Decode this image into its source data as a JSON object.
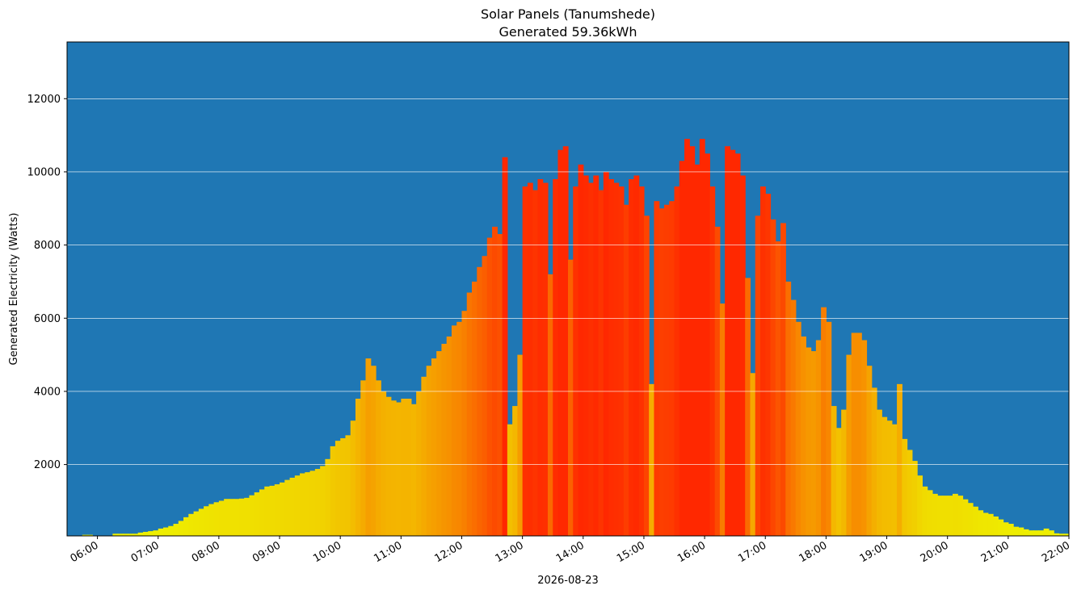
{
  "chart_data": {
    "type": "bar",
    "title": "Solar Panels (Tanumshede)",
    "subtitle": "Generated 59.36kWh",
    "xlabel": "2026-08-23",
    "ylabel": "Generated Electricity (Watts)",
    "x_range_hours": [
      5.5,
      22.0
    ],
    "ylim": [
      50,
      13550
    ],
    "y_ticks": [
      2000,
      4000,
      6000,
      8000,
      10000,
      12000
    ],
    "x_ticks": [
      "06:00",
      "07:00",
      "08:00",
      "09:00",
      "10:00",
      "11:00",
      "12:00",
      "13:00",
      "14:00",
      "15:00",
      "16:00",
      "17:00",
      "18:00",
      "19:00",
      "20:00",
      "21:00",
      "22:00"
    ],
    "grid": "horizontal",
    "colors": {
      "background": "#1f77b4",
      "grid": "#ffffff",
      "low": "#eef200",
      "mid": "#f5a800",
      "high": "#ff2800"
    },
    "interval_minutes": 5,
    "series": [
      {
        "start_hour": 5.75,
        "values": [
          80,
          80,
          0,
          0,
          0,
          0,
          110,
          110,
          110,
          110,
          110,
          140,
          160,
          180,
          200,
          250,
          280,
          320,
          380,
          460,
          560,
          650,
          720,
          790,
          860,
          920,
          970,
          1010,
          1060,
          1060,
          1060,
          1070,
          1090,
          1160,
          1240,
          1320,
          1400,
          1420,
          1460,
          1510,
          1580,
          1640,
          1700,
          1760,
          1790,
          1830,
          1880,
          1960,
          2150,
          2500,
          2650,
          2720,
          2800,
          3200,
          3800,
          4300,
          4900,
          4700,
          4300,
          4000,
          3850,
          3750,
          3700,
          3800,
          3800,
          3650,
          4000,
          4400,
          4700,
          4900,
          5100,
          5300,
          5500,
          5800,
          5900,
          6200,
          6700,
          7000,
          7400,
          7700,
          8200,
          8500,
          8300,
          10400,
          3100,
          3600,
          5000,
          9600,
          9700,
          9500,
          9800,
          9700,
          7200,
          9800,
          10600,
          10700,
          7600,
          9600,
          10200,
          9900,
          9700,
          9900,
          9500,
          10000,
          9800,
          9700,
          9600,
          9100,
          9800,
          9900,
          9600,
          8800,
          4200,
          9200,
          9000,
          9100,
          9200,
          9600,
          10300,
          10900,
          10700,
          10200,
          10900,
          10500,
          9600,
          8500,
          6400,
          10700,
          10600,
          10500,
          9900,
          7100,
          4500,
          8800,
          9600,
          9400,
          8700,
          8100,
          8600,
          7000,
          6500,
          5900,
          5500,
          5200,
          5100,
          5400,
          6300,
          5900,
          3600,
          3000,
          3500,
          5000,
          5600,
          5600,
          5400,
          4700,
          4100,
          3500,
          3300,
          3200,
          3100,
          4200,
          2700,
          2400,
          2100,
          1700,
          1400,
          1300,
          1200,
          1150,
          1150,
          1150,
          1200,
          1150,
          1050,
          950,
          850,
          750,
          680,
          650,
          580,
          500,
          420,
          380,
          300,
          280,
          230,
          200,
          200,
          200,
          250,
          200,
          120,
          110,
          110
        ]
      }
    ]
  }
}
